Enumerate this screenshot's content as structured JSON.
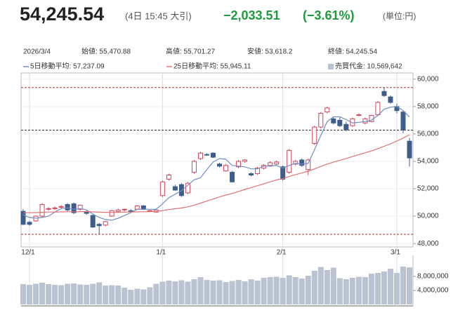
{
  "header": {
    "price": "54,245.54",
    "time": "(4日 15:45 大引)",
    "change": "−2,033.51",
    "change_pct": "(−3.61%)",
    "unit": "(単位:円)"
  },
  "info": {
    "date": "2026/3/4",
    "open": "始値: 55,470.88",
    "high": "高値: 55,701.27",
    "low": "安値: 53,618.2",
    "close": "終値: 54,245.54"
  },
  "chart_data": [
    {
      "type": "candlestick",
      "categories": [
        null,
        "12/1",
        null,
        null,
        null,
        null,
        null,
        null,
        null,
        null,
        null,
        null,
        null,
        null,
        null,
        null,
        null,
        null,
        null,
        null,
        null,
        null,
        "1/1",
        null,
        null,
        null,
        null,
        null,
        null,
        null,
        null,
        null,
        null,
        null,
        null,
        null,
        null,
        null,
        null,
        null,
        null,
        "2/1",
        null,
        null,
        null,
        null,
        null,
        null,
        null,
        null,
        null,
        null,
        null,
        null,
        null,
        null,
        null,
        null,
        null,
        "3/1",
        null,
        null
      ],
      "open": [
        50350,
        49550,
        49650,
        50000,
        50500,
        50550,
        50650,
        50850,
        50900,
        50500,
        50300,
        50050,
        49400,
        49350,
        50000,
        50350,
        50450,
        50400,
        50500,
        50750,
        50350,
        50300,
        51500,
        52700,
        52150,
        52300,
        51700,
        53200,
        54200,
        54500,
        54600,
        53800,
        53300,
        53200,
        53600,
        54000,
        53100,
        53100,
        53500,
        53700,
        53800,
        53600,
        53200,
        53800,
        54100,
        53400,
        55300,
        56500,
        57600,
        57100,
        57000,
        56700,
        56600,
        57350,
        56800,
        56900,
        57400,
        59100,
        58700,
        58000,
        57600,
        55470.88
      ],
      "high": [
        50500,
        49650,
        50050,
        50950,
        50650,
        50700,
        50800,
        50950,
        51000,
        50850,
        50400,
        50100,
        49500,
        49650,
        50450,
        50550,
        50550,
        50500,
        50800,
        50800,
        50450,
        50500,
        52600,
        53100,
        52300,
        52400,
        52500,
        54100,
        54700,
        54600,
        54650,
        53900,
        53800,
        53300,
        54100,
        54150,
        53200,
        53600,
        53800,
        54000,
        54050,
        53700,
        54900,
        54100,
        54200,
        54200,
        56600,
        57600,
        58000,
        57200,
        57200,
        56900,
        57200,
        57500,
        57200,
        57400,
        58400,
        59385,
        58800,
        58200,
        57700,
        55701.27
      ],
      "low": [
        49350,
        49300,
        49600,
        49900,
        50400,
        50450,
        50550,
        50350,
        50150,
        50400,
        50100,
        49150,
        48670,
        49250,
        49950,
        50300,
        50350,
        50300,
        50450,
        50450,
        50300,
        50250,
        51400,
        52600,
        51850,
        51400,
        51600,
        53100,
        54100,
        54400,
        54250,
        53550,
        53250,
        52450,
        53500,
        53900,
        52900,
        53000,
        53400,
        53600,
        53700,
        52600,
        53100,
        53700,
        53600,
        53000,
        55200,
        56400,
        57500,
        56700,
        56500,
        56200,
        56500,
        57300,
        56700,
        56850,
        57300,
        58700,
        58200,
        57500,
        56050,
        53618.2
      ],
      "close": [
        49400,
        49400,
        50000,
        50850,
        50550,
        50600,
        50700,
        50450,
        50250,
        50800,
        50200,
        49200,
        49300,
        49600,
        50400,
        50450,
        50500,
        50350,
        50750,
        50500,
        50400,
        50450,
        52500,
        53000,
        51900,
        51500,
        52400,
        54000,
        54600,
        54450,
        54300,
        53650,
        53700,
        52500,
        54000,
        54100,
        53000,
        53500,
        53700,
        53900,
        53950,
        52700,
        54800,
        54000,
        53700,
        54100,
        56500,
        57500,
        57900,
        56800,
        56600,
        56300,
        57100,
        57400,
        57100,
        57350,
        58300,
        58800,
        58300,
        57700,
        56279.05,
        54245.54
      ],
      "up_color": "#d0455a",
      "down_color": "#3d5d8c",
      "series": [
        {
          "name": "5日移動平均: 57,237.09",
          "color": "#6f8fc4",
          "values": [
            50100,
            49900,
            49850,
            49900,
            50000,
            50300,
            50550,
            50600,
            50500,
            50550,
            50450,
            50150,
            49900,
            49750,
            49700,
            49850,
            50050,
            50250,
            50500,
            50500,
            50500,
            50500,
            50900,
            51350,
            51600,
            51850,
            52250,
            52650,
            52800,
            53400,
            53950,
            54200,
            54150,
            53700,
            53650,
            53600,
            53450,
            53450,
            53650,
            53650,
            53700,
            53500,
            53700,
            53850,
            53800,
            53850,
            54850,
            55900,
            56900,
            57250,
            57250,
            57050,
            56800,
            56850,
            56900,
            57000,
            57350,
            57800,
            57950,
            58000,
            57700,
            57237.09
          ]
        },
        {
          "name": "25日移動平均: 55,945.11",
          "color": "#e07373",
          "values": [
            50250,
            50250,
            50260,
            50280,
            50300,
            50300,
            50310,
            50320,
            50320,
            50330,
            50330,
            50310,
            50290,
            50280,
            50280,
            50280,
            50290,
            50300,
            50310,
            50320,
            50330,
            50340,
            50400,
            50480,
            50540,
            50590,
            50680,
            50800,
            50950,
            51100,
            51250,
            51400,
            51540,
            51650,
            51800,
            51950,
            52080,
            52220,
            52360,
            52500,
            52640,
            52740,
            52900,
            53030,
            53150,
            53280,
            53450,
            53630,
            53800,
            53940,
            54080,
            54210,
            54350,
            54490,
            54620,
            54760,
            54920,
            55100,
            55280,
            55480,
            55700,
            55945.11
          ]
        }
      ],
      "ref_lines": [
        59385,
        56279.05,
        48670
      ],
      "ylim": [
        47750,
        60450
      ],
      "yticks": [
        {
          "value": 48000,
          "label": "48,000"
        },
        {
          "value": 50000,
          "label": "50,000"
        },
        {
          "value": 52000,
          "label": "52,000"
        },
        {
          "value": 54000,
          "label": "54,000"
        },
        {
          "value": 56000,
          "label": "56,000"
        },
        {
          "value": 58000,
          "label": "58,000"
        },
        {
          "value": 60000,
          "label": "60,000"
        }
      ]
    },
    {
      "type": "bar",
      "series": [
        {
          "name": "売買代金: 10,569,642",
          "color": "#b9c3d1",
          "values": [
            5800000,
            5600000,
            5900000,
            6200000,
            5800000,
            5600000,
            5500000,
            5900000,
            6000000,
            5700000,
            5600000,
            5900000,
            6300000,
            5400000,
            5500000,
            5400000,
            4800000,
            4200000,
            4500000,
            4300000,
            4900000,
            5900000,
            6500000,
            6800000,
            6600000,
            6900000,
            6500000,
            7200000,
            7800000,
            7000000,
            6800000,
            6900000,
            6400000,
            6700000,
            7000000,
            6600000,
            7200000,
            6800000,
            7600000,
            7800000,
            7900000,
            7600000,
            8300000,
            7800000,
            7400000,
            8200000,
            9600000,
            10700000,
            9800000,
            10500000,
            7500000,
            7200000,
            7600000,
            7900000,
            7800000,
            8800000,
            9000000,
            9400000,
            10200000,
            9000000,
            10800000,
            10569642
          ]
        }
      ],
      "ylim": [
        0,
        14000000
      ],
      "yticks": [
        {
          "value": 4000000,
          "label": "4,000,000"
        },
        {
          "value": 8000000,
          "label": "8,000,000"
        }
      ]
    }
  ]
}
